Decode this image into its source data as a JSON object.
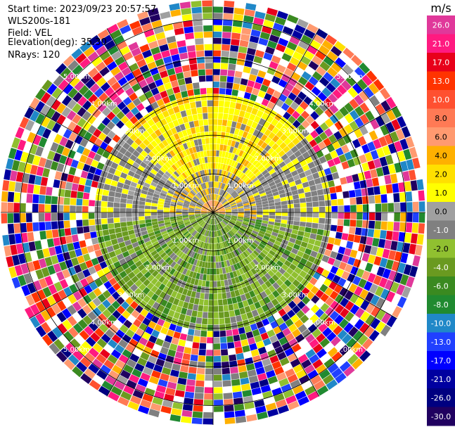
{
  "header": {
    "start_time": "Start time: 2023/09/23 20:57:57",
    "instrument": "WLS200s-181",
    "field": "Field: VEL",
    "elevation": "Elevation(deg): 35.30",
    "nrays": "NRays: 120"
  },
  "colorbar": {
    "unit": "m/s",
    "ticks": [
      "26.0",
      "21.0",
      "17.0",
      "13.0",
      "10.0",
      "8.0",
      "6.0",
      "4.0",
      "2.0",
      "1.0",
      "0.0",
      "-1.0",
      "-2.0",
      "-4.0",
      "-6.0",
      "-8.0",
      "-10.0",
      "-13.0",
      "-17.0",
      "-21.0",
      "-26.0",
      "-30.0"
    ],
    "colors": [
      "#e0389a",
      "#ff1a80",
      "#e8001a",
      "#ff3300",
      "#ff5030",
      "#ff7a55",
      "#ff9a70",
      "#ffb000",
      "#ffe000",
      "#ffff00",
      "#a0a0a0",
      "#808080",
      "#90c030",
      "#6a9a20",
      "#3a8a20",
      "#208a30",
      "#2088c8",
      "#2040ff",
      "#0000ff",
      "#0000a0",
      "#000080",
      "#200060"
    ]
  },
  "chart_data": {
    "type": "heatmap",
    "field": "VEL",
    "unit": "m/s",
    "nrays": 120,
    "elevation_deg": 35.3,
    "range_rings_km": [
      1.0,
      2.0,
      3.0,
      4.0,
      5.0
    ],
    "range_ring_labels": [
      "1.00km",
      "2.00km",
      "3.00km",
      "4.00km",
      "5.00km"
    ],
    "regions": [
      {
        "range_km": [
          0,
          1.5
        ],
        "sector": "north",
        "values": [
          1.0,
          6.0
        ]
      },
      {
        "range_km": [
          0,
          3.0
        ],
        "sector": "south",
        "values": [
          -6.0,
          -1.0
        ]
      },
      {
        "range_km": [
          3.0,
          5.5
        ],
        "sector": "all",
        "values": [
          -30.0,
          26.0
        ]
      }
    ]
  }
}
